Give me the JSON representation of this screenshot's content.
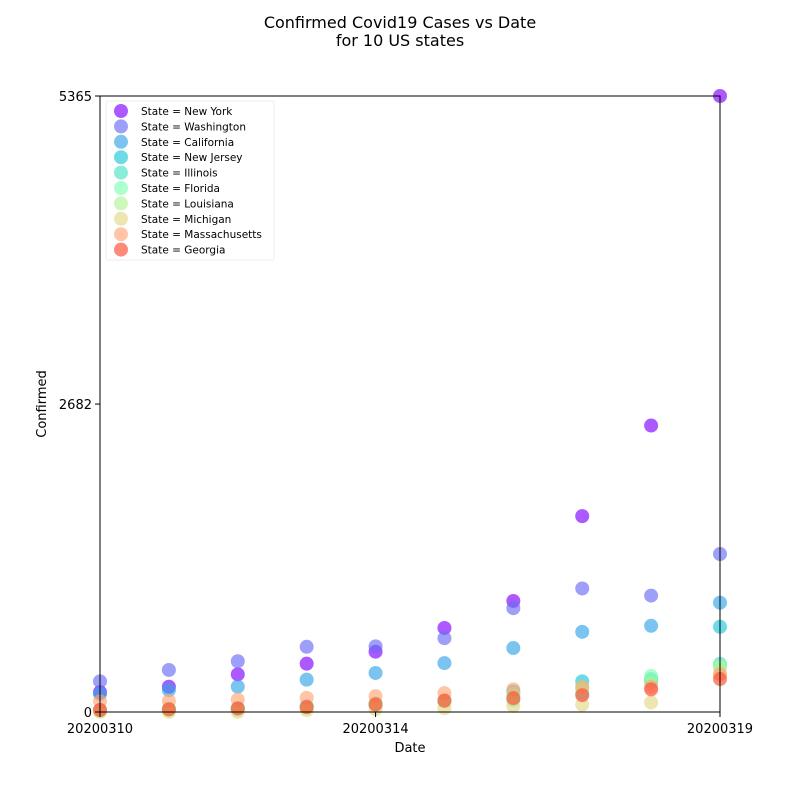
{
  "chart_data": {
    "type": "scatter",
    "title_line1": "Confirmed Covid19 Cases vs Date",
    "title_line2": "for 10 US states",
    "xlabel": "Date",
    "ylabel": "Confirmed",
    "x": [
      "20200310",
      "20200311",
      "20200312",
      "20200313",
      "20200314",
      "20200315",
      "20200316",
      "20200317",
      "20200318",
      "20200319"
    ],
    "x_ticks": [
      "20200310",
      "20200314",
      "20200319"
    ],
    "y_ticks": [
      0,
      2682,
      5365
    ],
    "ylim": [
      0,
      5365
    ],
    "grid": false,
    "legend_position": "top-left",
    "series": [
      {
        "name": "State = New York",
        "color": "#8000ff",
        "values": [
          173,
          220,
          328,
          421,
          525,
          732,
          967,
          1706,
          2495,
          5365
        ]
      },
      {
        "name": "State = Washington",
        "color": "#6a6bf5",
        "values": [
          267,
          366,
          442,
          568,
          572,
          643,
          904,
          1076,
          1014,
          1376
        ]
      },
      {
        "name": "State = California",
        "color": "#34a4e8",
        "values": [
          157,
          190,
          221,
          282,
          340,
          426,
          557,
          698,
          751,
          952
        ]
      },
      {
        "name": "State = New Jersey",
        "color": "#1dc8da",
        "values": [
          15,
          23,
          29,
          50,
          69,
          98,
          178,
          267,
          267,
          742
        ]
      },
      {
        "name": "State = Illinois",
        "color": "#4ce4c6",
        "values": [
          19,
          25,
          32,
          46,
          64,
          93,
          105,
          161,
          288,
          420
        ]
      },
      {
        "name": "State = Florida",
        "color": "#80ffb4",
        "values": [
          15,
          28,
          35,
          50,
          76,
          100,
          155,
          216,
          314,
          390
        ]
      },
      {
        "name": "State = Louisiana",
        "color": "#b3f396",
        "values": [
          6,
          14,
          19,
          36,
          77,
          91,
          136,
          196,
          257,
          392
        ]
      },
      {
        "name": "State = Michigan",
        "color": "#e2d889",
        "values": [
          2,
          2,
          2,
          16,
          25,
          33,
          53,
          65,
          83,
          334
        ]
      },
      {
        "name": "State = Massachusetts",
        "color": "#ffa673",
        "values": [
          92,
          95,
          108,
          123,
          138,
          164,
          197,
          218,
          218,
          328
        ]
      },
      {
        "name": "State = Georgia",
        "color": "#ff4b33",
        "values": [
          17,
          23,
          31,
          42,
          66,
          99,
          121,
          146,
          197,
          287
        ]
      }
    ]
  }
}
